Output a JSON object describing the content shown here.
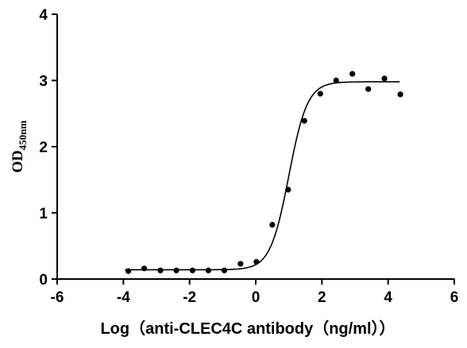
{
  "chart_data": {
    "type": "scatter",
    "title": "",
    "xlabel": "Log（anti-CLEC4C antibody（ng/ml））",
    "ylabel": {
      "main": "OD",
      "sub": "450nm"
    },
    "xlim": [
      -6,
      6
    ],
    "ylim": [
      0,
      4
    ],
    "x_ticks": [
      -6,
      -4,
      -2,
      0,
      2,
      4,
      6
    ],
    "y_ticks": [
      0,
      1,
      2,
      3,
      4
    ],
    "x_tick_labels": [
      "-6",
      "-4",
      "-2",
      "0",
      "2",
      "4",
      "6"
    ],
    "y_tick_labels": [
      "0",
      "1",
      "2",
      "3",
      "4"
    ],
    "grid": false,
    "legend": "none",
    "series": [
      {
        "points": [
          [
            -3.85,
            0.12
          ],
          [
            -3.37,
            0.16
          ],
          [
            -2.88,
            0.13
          ],
          [
            -2.4,
            0.13
          ],
          [
            -1.91,
            0.13
          ],
          [
            -1.43,
            0.13
          ],
          [
            -0.95,
            0.13
          ],
          [
            -0.46,
            0.23
          ],
          [
            0.02,
            0.26
          ],
          [
            0.5,
            0.82
          ],
          [
            0.98,
            1.35
          ],
          [
            1.47,
            2.39
          ],
          [
            1.95,
            2.8
          ],
          [
            2.43,
            3.0
          ],
          [
            2.92,
            3.1
          ],
          [
            3.4,
            2.87
          ],
          [
            3.89,
            3.03
          ],
          [
            4.37,
            2.79
          ]
        ],
        "fit": {
          "model": "4PL",
          "bottom": 0.14,
          "top": 2.98,
          "logEC50": 1.0,
          "hill": 1.55,
          "x_range": [
            -3.95,
            4.35
          ]
        }
      }
    ],
    "colors": {
      "marker": "#000000",
      "line": "#000000"
    }
  }
}
